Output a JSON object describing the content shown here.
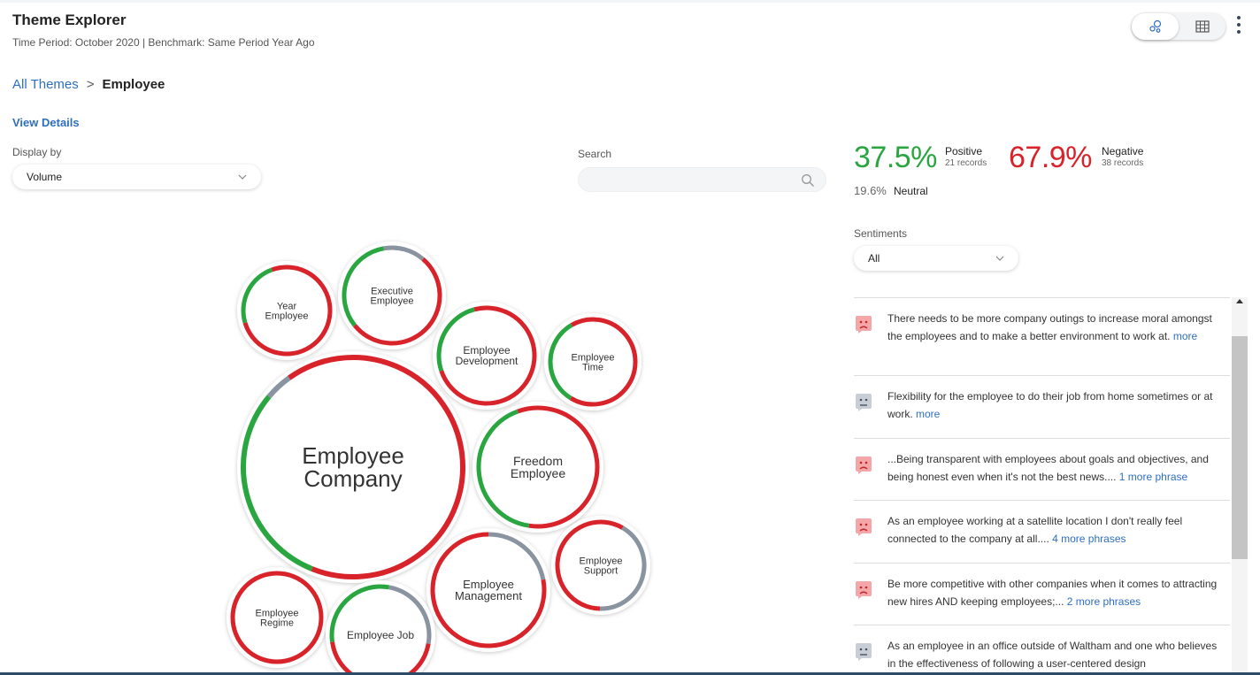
{
  "header": {
    "title": "Theme Explorer",
    "subtitle": "Time Period: October 2020 | Benchmark: Same Period Year Ago"
  },
  "toolbar": {
    "bubble_view_icon": "bubble-view-icon",
    "table_view_icon": "table-view-icon",
    "more_icon": "kebab-menu-icon"
  },
  "breadcrumb": {
    "root": "All Themes",
    "separator": ">",
    "current": "Employee"
  },
  "view_details": "View Details",
  "display_by": {
    "label": "Display by",
    "value": "Volume"
  },
  "search": {
    "label": "Search",
    "placeholder": "",
    "value": ""
  },
  "sentiment_summary": {
    "positive": {
      "pct": "37.5%",
      "label": "Positive",
      "records": "21 records"
    },
    "negative": {
      "pct": "67.9%",
      "label": "Negative",
      "records": "38 records"
    },
    "neutral": {
      "pct": "19.6%",
      "label": "Neutral"
    }
  },
  "sentiments_filter": {
    "label": "Sentiments",
    "value": "All"
  },
  "colors": {
    "positive": "#2aa641",
    "negative": "#d8232a",
    "neutral": "#8a93a0",
    "link": "#2f6fbf"
  },
  "bubbles": [
    {
      "name": "Employee Company",
      "lines": [
        "Employee",
        "Company"
      ],
      "positive": 0.3,
      "negative": 0.66,
      "neutral": 0.04
    },
    {
      "name": "Year Employee",
      "lines": [
        "Year",
        "Employee"
      ],
      "positive": 0.24,
      "negative": 0.76,
      "neutral": 0
    },
    {
      "name": "Executive Employee",
      "lines": [
        "Executive",
        "Employee"
      ],
      "positive": 0.33,
      "negative": 0.53,
      "neutral": 0.14
    },
    {
      "name": "Employee Development",
      "lines": [
        "Employee",
        "Development"
      ],
      "positive": 0.26,
      "negative": 0.74,
      "neutral": 0
    },
    {
      "name": "Employee Time",
      "lines": [
        "Employee",
        "Time"
      ],
      "positive": 0.33,
      "negative": 0.67,
      "neutral": 0
    },
    {
      "name": "Freedom Employee",
      "lines": [
        "Freedom",
        "Employee"
      ],
      "positive": 0.42,
      "negative": 0.58,
      "neutral": 0
    },
    {
      "name": "Employee Support",
      "lines": [
        "Employee",
        "Support"
      ],
      "positive": 0,
      "negative": 0.58,
      "neutral": 0.42
    },
    {
      "name": "Employee Management",
      "lines": [
        "Employee",
        "Management"
      ],
      "positive": 0,
      "negative": 0.78,
      "neutral": 0.22
    },
    {
      "name": "Employee Regime",
      "lines": [
        "Employee",
        "Regime"
      ],
      "positive": 0,
      "negative": 1,
      "neutral": 0
    },
    {
      "name": "Employee Job",
      "lines": [
        "Employee Job"
      ],
      "positive": 0.3,
      "negative": 0.45,
      "neutral": 0.25
    }
  ],
  "comments": [
    {
      "sentiment": "negative",
      "text": "There needs to be more company outings to increase moral amongst the employees and to make a better environment to work at.",
      "more": "more"
    },
    {
      "sentiment": "neutral",
      "text": "Flexibility for the employee to do their job from home sometimes or at work.",
      "more": "more"
    },
    {
      "sentiment": "negative",
      "text": "...Being transparent with employees about goals and objectives, and being honest even when it's not the best news....",
      "more": "1 more phrase"
    },
    {
      "sentiment": "negative",
      "text": "As an employee working at a satellite location I don't really feel connected to the company at all....",
      "more": "4 more phrases"
    },
    {
      "sentiment": "negative",
      "text": "Be more competitive with other companies when it comes to attracting new hires AND keeping employees;...",
      "more": "2 more phrases"
    },
    {
      "sentiment": "neutral",
      "text": "As an employee in an office outside of Waltham and one who believes in the effectiveness of following a user-centered design",
      "more": ""
    }
  ]
}
